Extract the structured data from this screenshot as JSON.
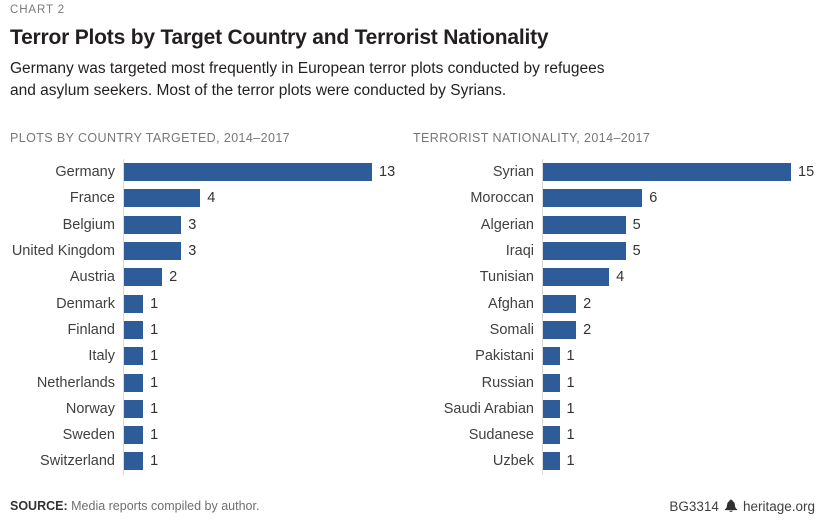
{
  "header": {
    "kicker": "CHART 2",
    "title": "Terror Plots by Target Country and Terrorist Nationality",
    "subtitle": "Germany was targeted most frequently in European terror plots conducted by refugees\nand asylum seekers. Most of the terror plots were conducted by Syrians."
  },
  "chart_data": [
    {
      "type": "bar",
      "orientation": "horizontal",
      "title": "PLOTS BY COUNTRY TARGETED, 2014–2017",
      "categories": [
        "Germany",
        "France",
        "Belgium",
        "United Kingdom",
        "Austria",
        "Denmark",
        "Finland",
        "Italy",
        "Netherlands",
        "Norway",
        "Sweden",
        "Switzerland"
      ],
      "values": [
        13,
        4,
        3,
        3,
        2,
        1,
        1,
        1,
        1,
        1,
        1,
        1
      ],
      "xlim": [
        0,
        13
      ],
      "data_labels": true,
      "grid": false,
      "bar_color": "#2d5c99"
    },
    {
      "type": "bar",
      "orientation": "horizontal",
      "title": "TERRORIST NATIONALITY, 2014–2017",
      "categories": [
        "Syrian",
        "Moroccan",
        "Algerian",
        "Iraqi",
        "Tunisian",
        "Afghan",
        "Somali",
        "Pakistani",
        "Russian",
        "Saudi Arabian",
        "Sudanese",
        "Uzbek"
      ],
      "values": [
        15,
        6,
        5,
        5,
        4,
        2,
        2,
        1,
        1,
        1,
        1,
        1
      ],
      "xlim": [
        0,
        15
      ],
      "data_labels": true,
      "grid": false,
      "bar_color": "#2d5c99"
    }
  ],
  "footer": {
    "source_label": "SOURCE:",
    "source_text": " Media reports compiled by author.",
    "credit_id": "BG3314",
    "credit_site": "heritage.org"
  },
  "colors": {
    "bar": "#2d5c99",
    "kicker_gray": "#7a7a7a",
    "section_gray": "#75787b",
    "axis_line": "#d9d9d9",
    "title_ink": "#231f20"
  }
}
